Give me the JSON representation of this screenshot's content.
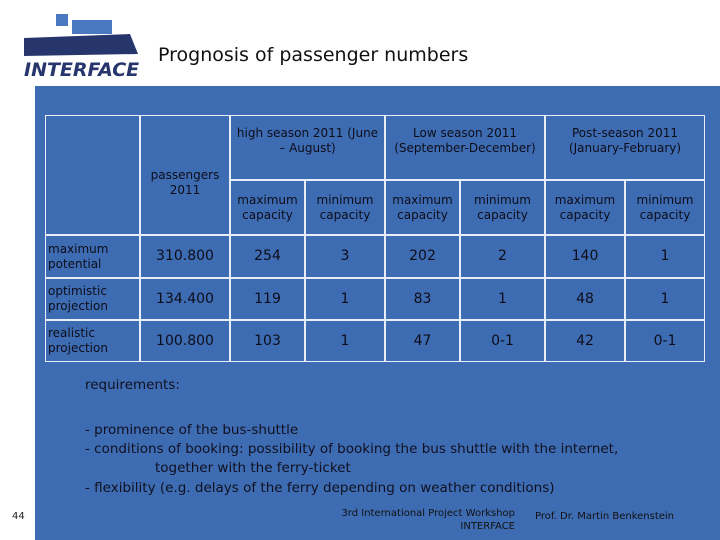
{
  "header": {
    "logo": "INTERFACE",
    "title": "Prognosis of passenger numbers"
  },
  "table": {
    "passengers_header": "passengers 2011",
    "group_headers": [
      "high season 2011 (June – August)",
      "Low season 2011 (September-December)",
      "Post-season 2011 (January-February)"
    ],
    "sub_headers": [
      "maximum capacity",
      "minimum capacity",
      "maximum capacity",
      "minimum capacity",
      "maximum capacity",
      "minimum capacity"
    ],
    "rows": [
      [
        "maximum potential",
        "310.800",
        "254",
        "3",
        "202",
        "2",
        "140",
        "1"
      ],
      [
        "optimistic projection",
        "134.400",
        "119",
        "1",
        "83",
        "1",
        "48",
        "1"
      ],
      [
        "realistic projection",
        "100.800",
        "103",
        "1",
        "47",
        "0-1",
        "42",
        "0-1"
      ]
    ]
  },
  "notes": {
    "heading": "requirements:",
    "lines": [
      "- prominence of the bus-shuttle",
      "- conditions of booking: possibility of booking the bus shuttle with the internet,",
      "together with the ferry-ticket",
      "- flexibility (e.g.  delays of the ferry depending on weather conditions)"
    ]
  },
  "footer": {
    "page": "44",
    "event": "3rd International Project Workshop",
    "event_org": "INTERFACE",
    "author": "Prof. Dr. Martin Benkenstein"
  }
}
